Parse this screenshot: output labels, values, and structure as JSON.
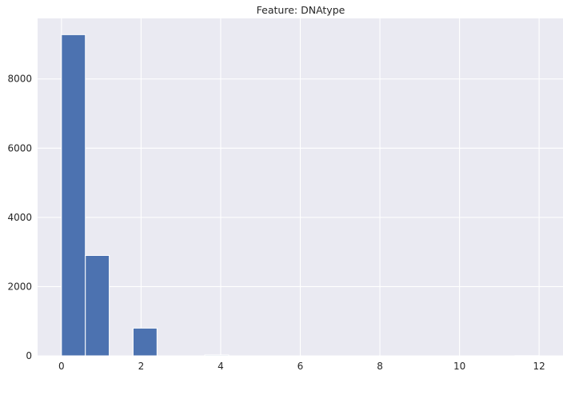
{
  "chart_data": {
    "type": "bar",
    "title": "Feature: DNAtype",
    "xlabel": "",
    "ylabel": "",
    "xlim": [
      -0.6,
      12.6
    ],
    "ylim": [
      0,
      9750
    ],
    "bin_width": 0.6,
    "bins": [
      {
        "x0": 0.0,
        "value": 9280
      },
      {
        "x0": 0.6,
        "value": 2900
      },
      {
        "x0": 1.8,
        "value": 800
      },
      {
        "x0": 3.6,
        "value": 25
      },
      {
        "x0": 11.4,
        "value": 5
      }
    ],
    "xticks": [
      0,
      2,
      4,
      6,
      8,
      10,
      12
    ],
    "yticks": [
      0,
      2000,
      4000,
      6000,
      8000
    ],
    "grid": true,
    "colors": {
      "bar": "#4c72b0",
      "background": "#eaeaf2",
      "grid": "#ffffff"
    }
  }
}
